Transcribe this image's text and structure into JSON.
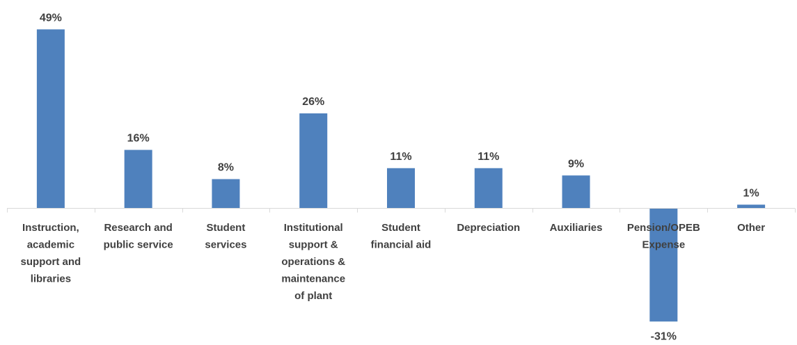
{
  "chart_data": {
    "type": "bar",
    "categories": [
      [
        "Instruction,",
        "academic",
        "support and",
        "libraries"
      ],
      [
        "Research and",
        "public service"
      ],
      [
        "Student",
        "services"
      ],
      [
        "Institutional",
        "support &",
        "operations &",
        "maintenance",
        "of plant"
      ],
      [
        "Student",
        "financial aid"
      ],
      [
        "Depreciation"
      ],
      [
        "Auxiliaries"
      ],
      [
        "Pension/OPEB",
        "Expense"
      ],
      [
        "Other"
      ]
    ],
    "values": [
      49,
      16,
      8,
      26,
      11,
      11,
      9,
      -31,
      1
    ],
    "value_labels": [
      "49%",
      "16%",
      "8%",
      "26%",
      "11%",
      "11%",
      "9%",
      "-31%",
      "1%"
    ],
    "ylim": [
      -31,
      49
    ],
    "bar_color": "#4f81bd",
    "grid": false,
    "legend": "none"
  }
}
